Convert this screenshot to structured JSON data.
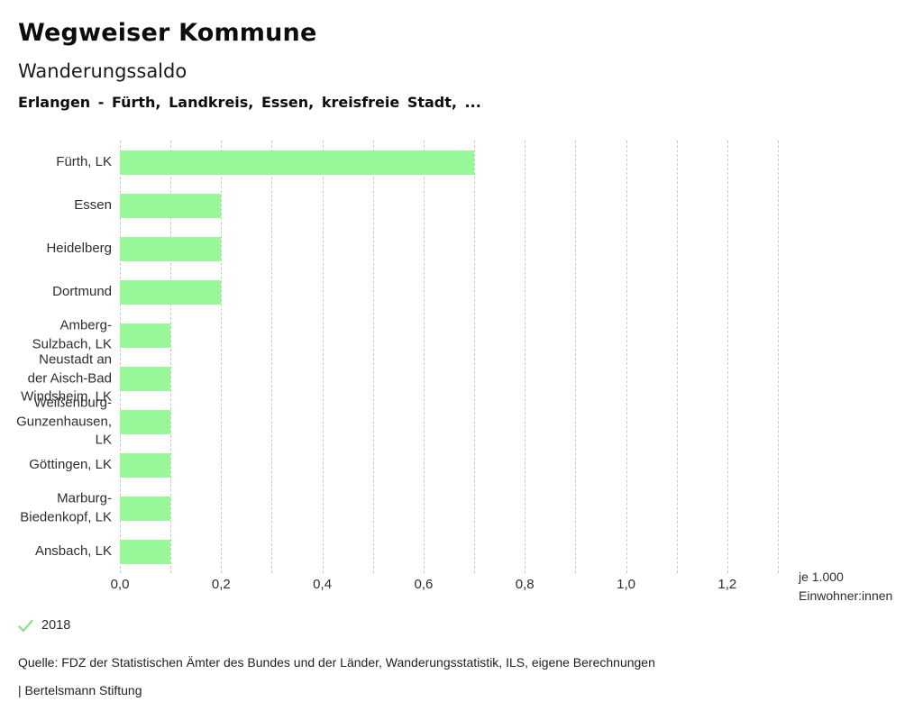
{
  "header": {
    "title": "Wegweiser Kommune",
    "subtitle": "Wanderungssaldo",
    "selection": "Erlangen - Fürth, Landkreis, Essen, kreisfreie Stadt, ..."
  },
  "legend": {
    "year": "2018",
    "check_color": "#8ee08e"
  },
  "axis": {
    "unit_line1": "je 1.000",
    "unit_line2": "Einwohner:innen"
  },
  "footer": {
    "source": "Quelle: FDZ der Statistischen Ämter des Bundes und der Länder, Wanderungsstatistik, ILS, eigene Berechnungen",
    "brand": "| Bertelsmann Stiftung"
  },
  "chart_data": {
    "type": "bar",
    "orientation": "horizontal",
    "title": "Wanderungssaldo",
    "xlabel": "je 1.000 Einwohner:innen",
    "xlim": [
      0,
      1.3
    ],
    "grid_step": 0.1,
    "grid": "dashed-vertical",
    "grid_color": "#c9c9c9",
    "bar_color": "#98f798",
    "legend_entries": [
      "2018"
    ],
    "xticks": [
      0,
      0.2,
      0.4,
      0.6,
      0.8,
      1.0,
      1.2
    ],
    "xtick_labels": [
      "0,0",
      "0,2",
      "0,4",
      "0,6",
      "0,8",
      "1,0",
      "1,2"
    ],
    "categories": [
      "Fürth, LK",
      "Essen",
      "Heidelberg",
      "Dortmund",
      "Amberg-Sulzbach, LK",
      "Neustadt an der Aisch-Bad Windsheim, LK",
      "Weißenburg-Gunzenhausen, LK",
      "Göttingen, LK",
      "Marburg-Biedenkopf, LK",
      "Ansbach, LK"
    ],
    "categories_wrapped": [
      [
        "Fürth, LK"
      ],
      [
        "Essen"
      ],
      [
        "Heidelberg"
      ],
      [
        "Dortmund"
      ],
      [
        "Amberg-",
        "Sulzbach, LK"
      ],
      [
        "Neustadt an",
        "der Aisch-Bad",
        "Windsheim, LK"
      ],
      [
        "Weißenburg-",
        "Gunzenhausen,",
        "LK"
      ],
      [
        "Göttingen, LK"
      ],
      [
        "Marburg-",
        "Biedenkopf, LK"
      ],
      [
        "Ansbach, LK"
      ]
    ],
    "series": [
      {
        "name": "2018",
        "values": [
          0.7,
          0.2,
          0.2,
          0.2,
          0.1,
          0.1,
          0.1,
          0.1,
          0.1,
          0.1
        ]
      }
    ]
  }
}
